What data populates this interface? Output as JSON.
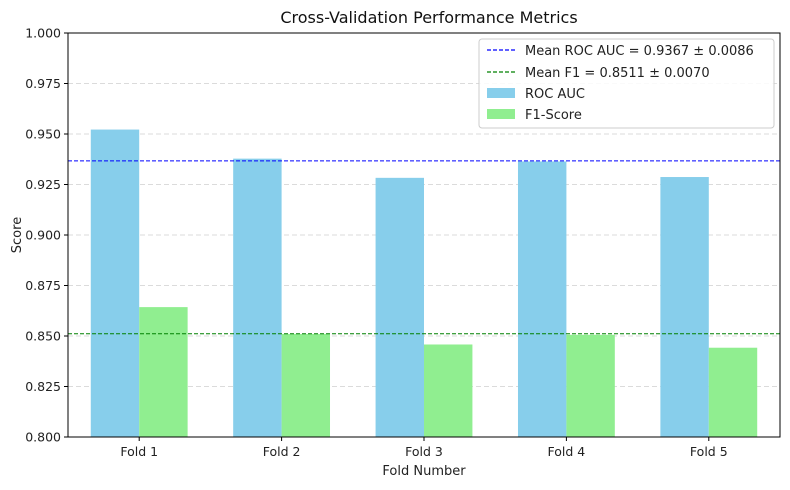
{
  "chart_data": {
    "type": "bar",
    "title": "Cross-Validation Performance Metrics",
    "xlabel": "Fold Number",
    "ylabel": "Score",
    "categories": [
      "Fold 1",
      "Fold 2",
      "Fold 3",
      "Fold 4",
      "Fold 5"
    ],
    "series": [
      {
        "name": "ROC AUC",
        "color": "#87ceeb",
        "values": [
          0.9522,
          0.9378,
          0.9283,
          0.9364,
          0.9287
        ]
      },
      {
        "name": "F1-Score",
        "color": "#90ee90",
        "values": [
          0.8643,
          0.851,
          0.8458,
          0.8506,
          0.8442
        ]
      }
    ],
    "reference_lines": [
      {
        "name": "Mean ROC AUC = 0.9367 ± 0.0086",
        "value": 0.9367,
        "color": "#0000ff",
        "style": "dashed"
      },
      {
        "name": "Mean F1 = 0.8511 ± 0.0070",
        "value": 0.8511,
        "color": "#008000",
        "style": "dashed"
      }
    ],
    "ylim": [
      0.8,
      1.0
    ],
    "yticks": [
      "0.800",
      "0.825",
      "0.850",
      "0.875",
      "0.900",
      "0.925",
      "0.950",
      "0.975",
      "1.000"
    ],
    "ytick_values": [
      0.8,
      0.825,
      0.85,
      0.875,
      0.9,
      0.925,
      0.95,
      0.975,
      1.0
    ],
    "grid": "y-dashed",
    "legend_position": "top-right"
  }
}
